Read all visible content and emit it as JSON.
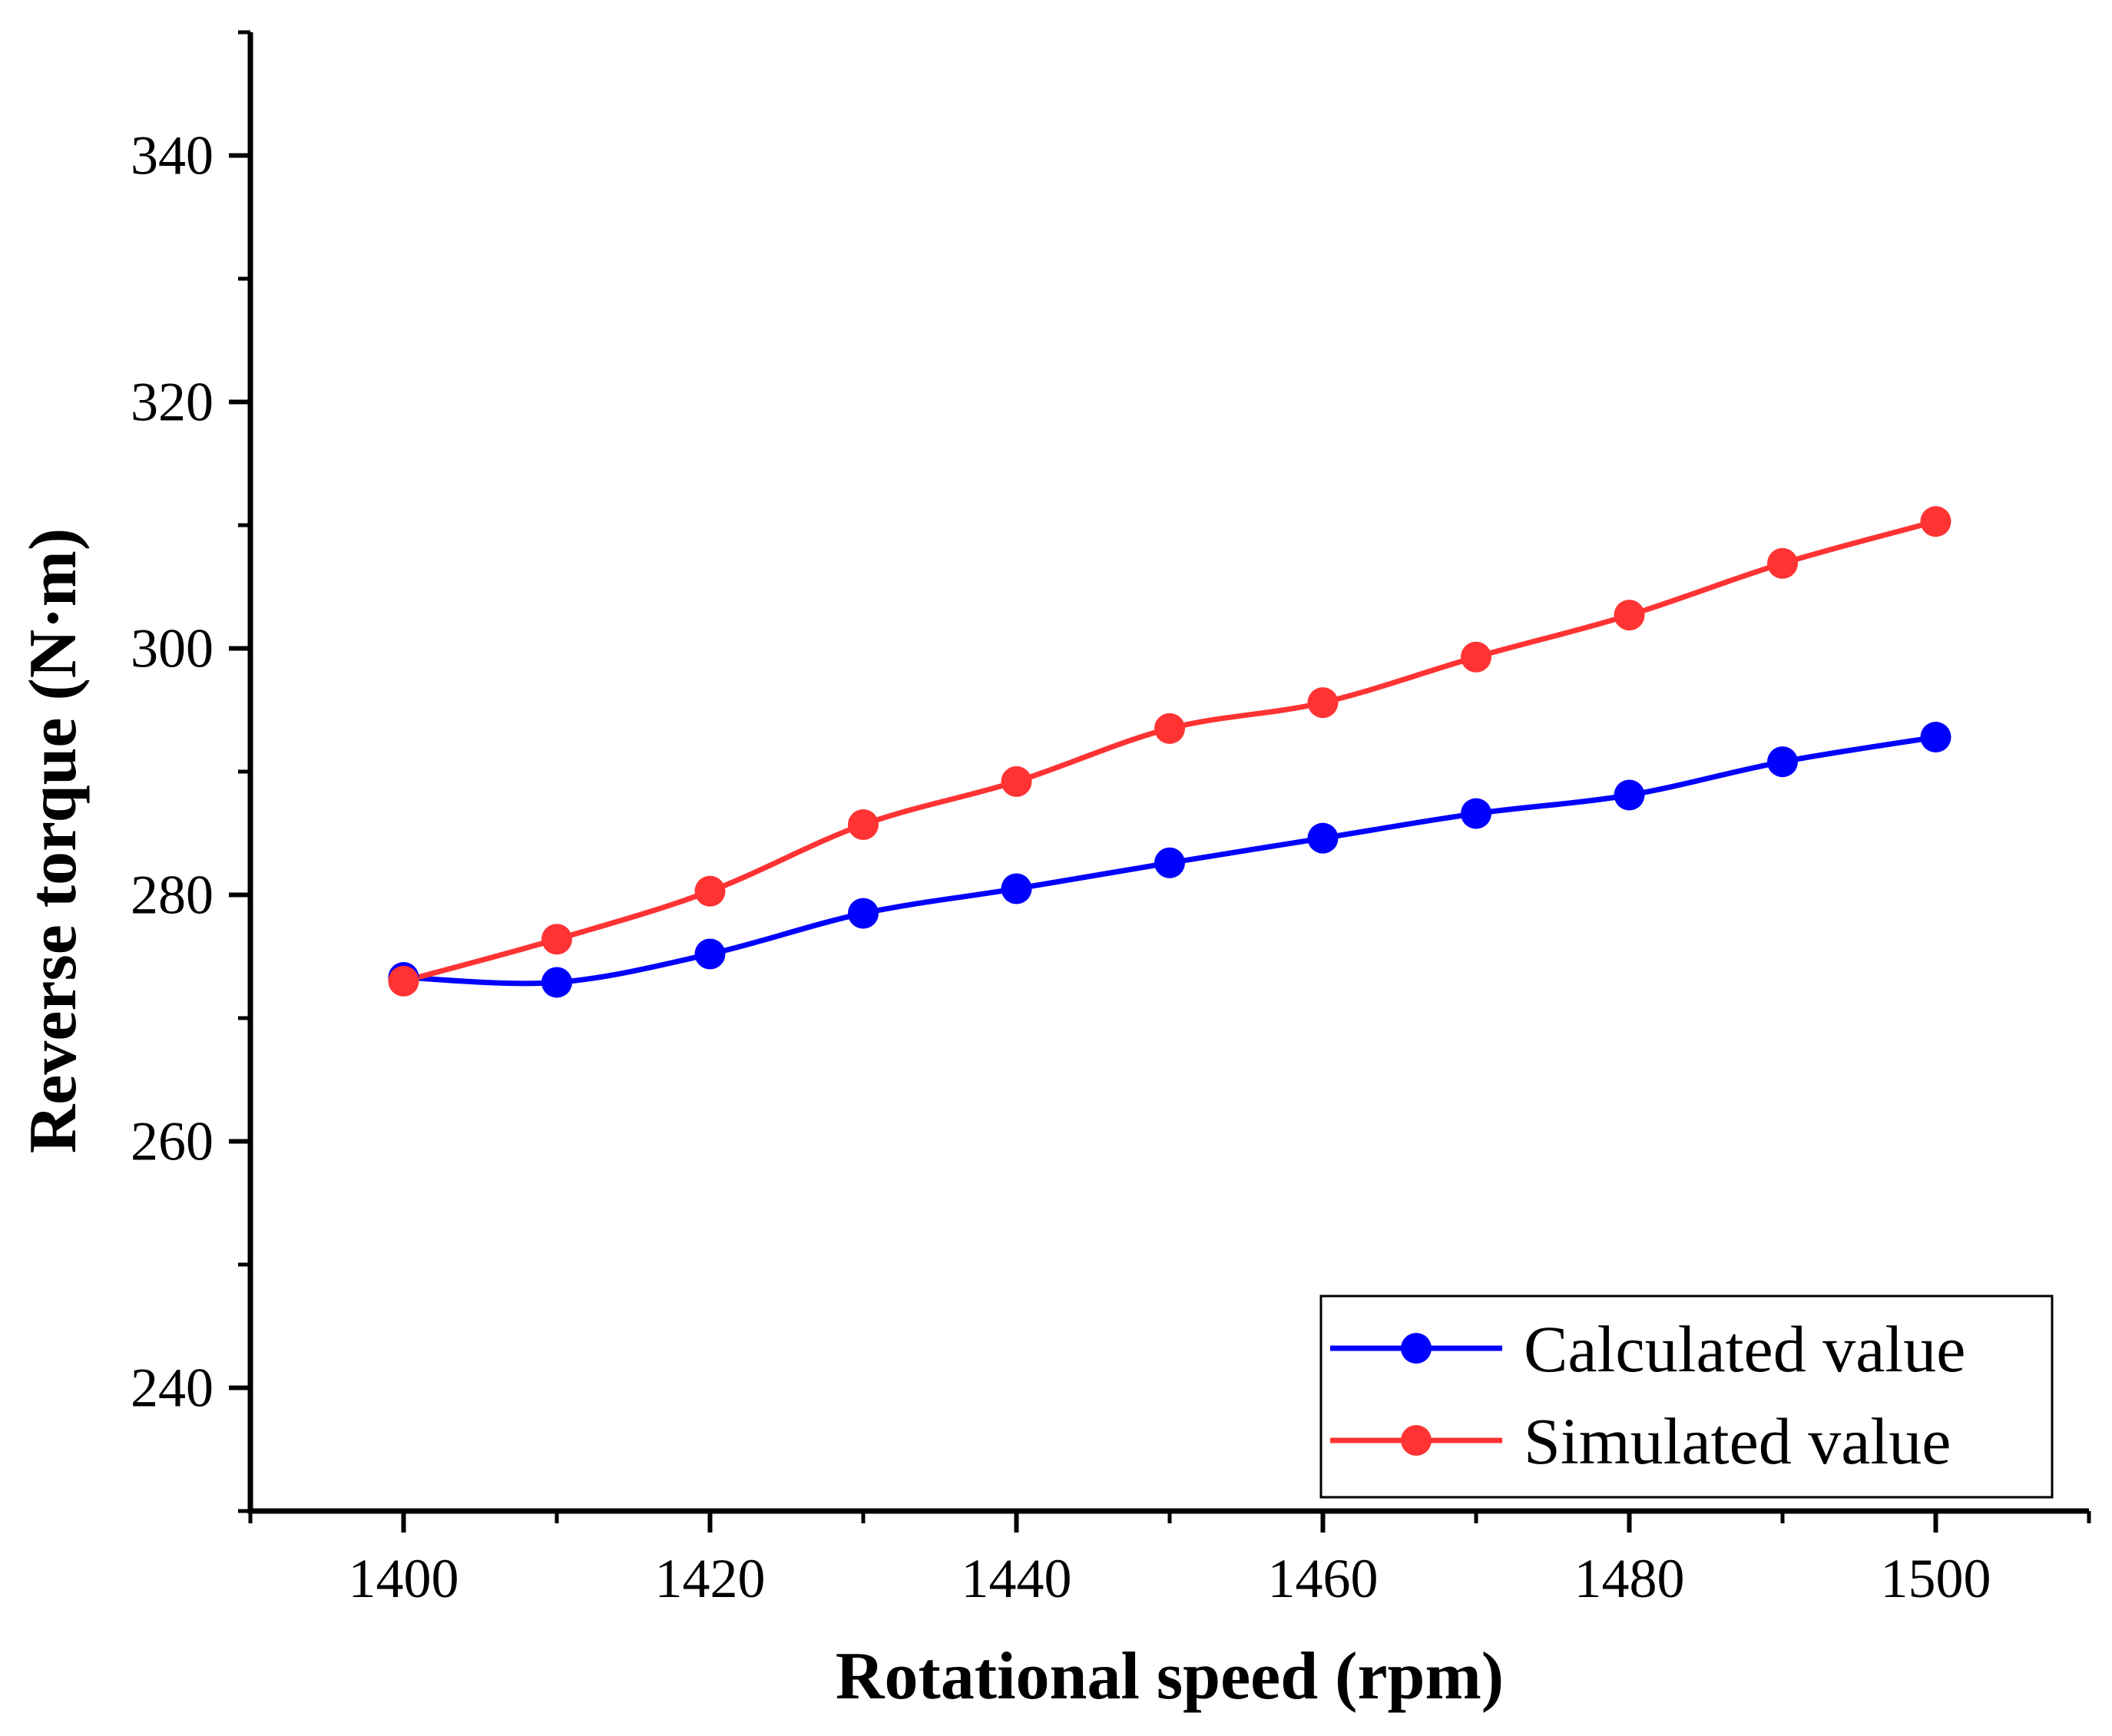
{
  "chart_data": {
    "type": "line",
    "title": "",
    "xlabel": "Rotational speed (rpm)",
    "ylabel": "Reverse torque (N·m)",
    "xlim": [
      1390,
      1510
    ],
    "ylim": [
      230,
      350
    ],
    "xticks": [
      1400,
      1420,
      1440,
      1460,
      1480,
      1500
    ],
    "yticks": [
      240,
      260,
      280,
      300,
      320,
      340
    ],
    "x": [
      1400,
      1410,
      1420,
      1430,
      1440,
      1450,
      1460,
      1470,
      1480,
      1490,
      1500
    ],
    "series": [
      {
        "name": "Calculated value",
        "color": "#0000ff",
        "values": [
          273.3,
          272.9,
          275.2,
          278.5,
          280.5,
          282.6,
          284.6,
          286.6,
          288.1,
          290.8,
          292.8
        ]
      },
      {
        "name": "Simulated value",
        "color": "#ff3333",
        "values": [
          273.0,
          276.4,
          280.3,
          285.7,
          289.2,
          293.5,
          295.6,
          299.3,
          302.7,
          306.9,
          310.3
        ]
      }
    ],
    "grid": false,
    "legend_position": "bottom-right"
  }
}
